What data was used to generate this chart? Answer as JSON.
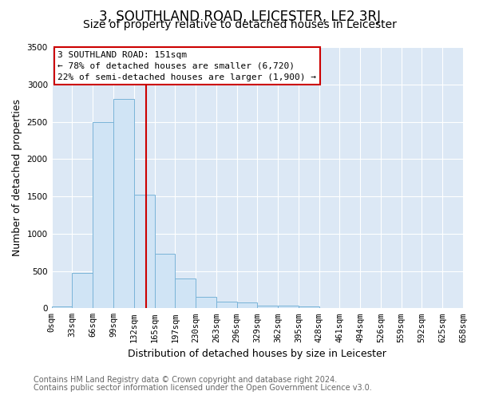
{
  "title": "3, SOUTHLAND ROAD, LEICESTER, LE2 3RJ",
  "subtitle": "Size of property relative to detached houses in Leicester",
  "xlabel": "Distribution of detached houses by size in Leicester",
  "ylabel": "Number of detached properties",
  "bin_labels": [
    "0sqm",
    "33sqm",
    "66sqm",
    "99sqm",
    "132sqm",
    "165sqm",
    "197sqm",
    "230sqm",
    "263sqm",
    "296sqm",
    "329sqm",
    "362sqm",
    "395sqm",
    "428sqm",
    "461sqm",
    "494sqm",
    "526sqm",
    "559sqm",
    "592sqm",
    "625sqm",
    "658sqm"
  ],
  "bar_values": [
    20,
    470,
    2500,
    2800,
    1520,
    730,
    400,
    155,
    90,
    75,
    40,
    35,
    30,
    0,
    0,
    0,
    0,
    0,
    0,
    0
  ],
  "bar_color": "#d0e4f5",
  "bar_edge_color": "#7ab4d8",
  "property_line_x": 151,
  "bin_width": 33,
  "ylim": [
    0,
    3500
  ],
  "yticks": [
    0,
    500,
    1000,
    1500,
    2000,
    2500,
    3000,
    3500
  ],
  "annotation_title": "3 SOUTHLAND ROAD: 151sqm",
  "annotation_line1": "← 78% of detached houses are smaller (6,720)",
  "annotation_line2": "22% of semi-detached houses are larger (1,900) →",
  "annotation_box_facecolor": "#ffffff",
  "annotation_box_edge": "#cc0000",
  "vline_color": "#cc0000",
  "footer1": "Contains HM Land Registry data © Crown copyright and database right 2024.",
  "footer2": "Contains public sector information licensed under the Open Government Licence v3.0.",
  "fig_bg_color": "#ffffff",
  "plot_bg_color": "#dce8f5",
  "grid_color": "#ffffff",
  "title_fontsize": 12,
  "subtitle_fontsize": 10,
  "axis_label_fontsize": 9,
  "tick_fontsize": 7.5,
  "footer_fontsize": 7,
  "annot_fontsize": 8
}
